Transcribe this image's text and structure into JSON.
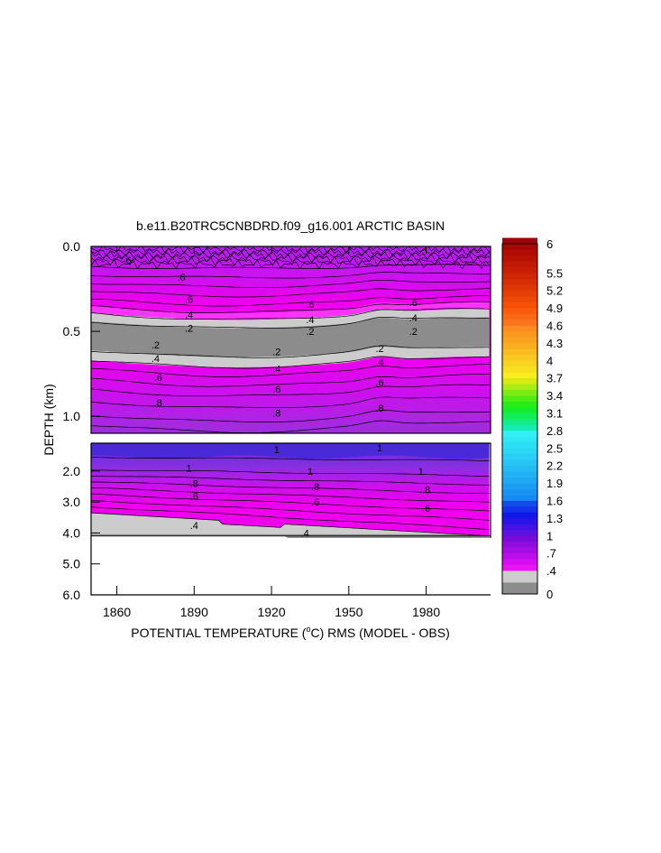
{
  "chart_data": {
    "type": "heatmap",
    "title": "b.e11.B20TRC5CNBDRD.f09_g16.001 ARCTIC BASIN",
    "xlabel_prefix": "POTENTIAL TEMPERATURE (",
    "xlabel_degree": "o",
    "xlabel_suffix": "C) RMS (MODEL - OBS)",
    "ylabel": "DEPTH (km)",
    "x_ticks": [
      1860,
      1890,
      1920,
      1950,
      1980
    ],
    "x_tick_labels": [
      "1860",
      "1890",
      "1920",
      "1950",
      "1980"
    ],
    "xlim": [
      1850,
      2005
    ],
    "upper_panel": {
      "ylim": [
        0.0,
        1.1
      ],
      "y_ticks": [
        0.0,
        0.5,
        1.0
      ],
      "y_tick_labels": [
        "0.0",
        "0.5",
        "1.0"
      ]
    },
    "lower_panel": {
      "ylim": [
        1.1,
        6.0
      ],
      "y_ticks": [
        2.0,
        3.0,
        4.0,
        5.0,
        6.0
      ],
      "y_tick_labels": [
        "2.0",
        "3.0",
        "4.0",
        "5.0",
        "6.0"
      ],
      "data_bottom_depth": 4.1
    },
    "colorbar": {
      "min": 0,
      "max": 6,
      "labels": [
        "6",
        "5.5",
        "5.2",
        "4.9",
        "4.6",
        "4.3",
        "4",
        "3.7",
        "3.4",
        "3.1",
        "2.8",
        "2.5",
        "2.2",
        "1.9",
        "1.6",
        "1.3",
        "1",
        ".7",
        ".4",
        "0"
      ],
      "label_values": [
        6,
        5.5,
        5.2,
        4.9,
        4.6,
        4.3,
        4.0,
        3.7,
        3.4,
        3.1,
        2.8,
        2.5,
        2.2,
        1.9,
        1.6,
        1.3,
        1.0,
        0.7,
        0.4,
        0
      ]
    },
    "contour_labels": {
      "upper": [
        {
          "text": ".6",
          "x": 1864,
          "depth": 0.08
        },
        {
          "text": ".6",
          "x": 1885,
          "depth": 0.18
        },
        {
          "text": ".6",
          "x": 1935,
          "depth": 0.34
        },
        {
          "text": ".6",
          "x": 1975,
          "depth": 0.33
        },
        {
          "text": ".6",
          "x": 1888,
          "depth": 0.31
        },
        {
          "text": ".4",
          "x": 1888,
          "depth": 0.4
        },
        {
          "text": ".4",
          "x": 1935,
          "depth": 0.43
        },
        {
          "text": ".4",
          "x": 1975,
          "depth": 0.42
        },
        {
          "text": ".2",
          "x": 1888,
          "depth": 0.48
        },
        {
          "text": ".2",
          "x": 1935,
          "depth": 0.5
        },
        {
          "text": ".2",
          "x": 1975,
          "depth": 0.5
        },
        {
          "text": ".2",
          "x": 1875,
          "depth": 0.58
        },
        {
          "text": ".2",
          "x": 1922,
          "depth": 0.62
        },
        {
          "text": ".2",
          "x": 1962,
          "depth": 0.6
        },
        {
          "text": ".4",
          "x": 1875,
          "depth": 0.66
        },
        {
          "text": ".4",
          "x": 1922,
          "depth": 0.72
        },
        {
          "text": ".4",
          "x": 1962,
          "depth": 0.68
        },
        {
          "text": ".6",
          "x": 1876,
          "depth": 0.77
        },
        {
          "text": ".6",
          "x": 1922,
          "depth": 0.84
        },
        {
          "text": ".6",
          "x": 1962,
          "depth": 0.8
        },
        {
          "text": ".8",
          "x": 1876,
          "depth": 0.92
        },
        {
          "text": ".8",
          "x": 1922,
          "depth": 0.98
        },
        {
          "text": ".8",
          "x": 1962,
          "depth": 0.95
        }
      ],
      "lower": [
        {
          "text": "1",
          "x": 1922,
          "depth": 1.3
        },
        {
          "text": "1",
          "x": 1962,
          "depth": 1.25
        },
        {
          "text": "1",
          "x": 1888,
          "depth": 1.9
        },
        {
          "text": "1",
          "x": 1935,
          "depth": 2.0
        },
        {
          "text": "1",
          "x": 1978,
          "depth": 2.0
        },
        {
          "text": ".8",
          "x": 1890,
          "depth": 2.4
        },
        {
          "text": ".8",
          "x": 1937,
          "depth": 2.5
        },
        {
          "text": ".8",
          "x": 1980,
          "depth": 2.6
        },
        {
          "text": ".6",
          "x": 1890,
          "depth": 2.8
        },
        {
          "text": ".6",
          "x": 1937,
          "depth": 3.0
        },
        {
          "text": ".6",
          "x": 1980,
          "depth": 3.2
        },
        {
          "text": ".4",
          "x": 1890,
          "depth": 3.75
        },
        {
          "text": ".4",
          "x": 1933,
          "depth": 4.0
        }
      ]
    }
  }
}
